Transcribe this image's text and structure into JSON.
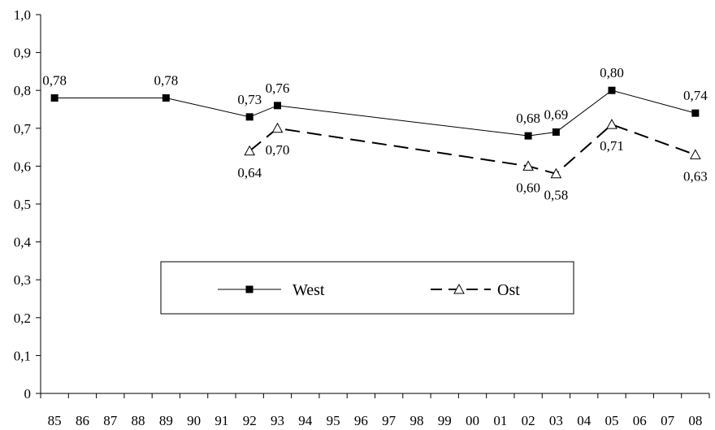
{
  "chart_data": {
    "type": "line",
    "categories": [
      "85",
      "86",
      "87",
      "88",
      "89",
      "90",
      "91",
      "92",
      "93",
      "94",
      "95",
      "96",
      "97",
      "98",
      "99",
      "00",
      "01",
      "02",
      "03",
      "04",
      "05",
      "06",
      "07",
      "08"
    ],
    "ylim": [
      0,
      1.0
    ],
    "yticks": [
      "0",
      "0,1",
      "0,2",
      "0,3",
      "0,4",
      "0,5",
      "0,6",
      "0,7",
      "0,8",
      "0,9",
      "1,0"
    ],
    "grid": false,
    "legend_position": "center",
    "series": [
      {
        "name": "West",
        "style": "solid",
        "marker": "square",
        "color": "#000000",
        "points": [
          {
            "x": "85",
            "y": 0.78,
            "label": "0,78",
            "label_pos": "above"
          },
          {
            "x": "89",
            "y": 0.78,
            "label": "0,78",
            "label_pos": "above"
          },
          {
            "x": "92",
            "y": 0.73,
            "label": "0,73",
            "label_pos": "above"
          },
          {
            "x": "93",
            "y": 0.76,
            "label": "0,76",
            "label_pos": "above"
          },
          {
            "x": "02",
            "y": 0.68,
            "label": "0,68",
            "label_pos": "above"
          },
          {
            "x": "03",
            "y": 0.69,
            "label": "0,69",
            "label_pos": "above"
          },
          {
            "x": "05",
            "y": 0.8,
            "label": "0,80",
            "label_pos": "above"
          },
          {
            "x": "08",
            "y": 0.74,
            "label": "0,74",
            "label_pos": "above"
          }
        ]
      },
      {
        "name": "Ost",
        "style": "dashed",
        "marker": "triangle-open",
        "color": "#000000",
        "points": [
          {
            "x": "92",
            "y": 0.64,
            "label": "0,64",
            "label_pos": "below"
          },
          {
            "x": "93",
            "y": 0.7,
            "label": "0,70",
            "label_pos": "below"
          },
          {
            "x": "02",
            "y": 0.6,
            "label": "0,60",
            "label_pos": "below"
          },
          {
            "x": "03",
            "y": 0.58,
            "label": "0,58",
            "label_pos": "below"
          },
          {
            "x": "05",
            "y": 0.71,
            "label": "0,71",
            "label_pos": "below"
          },
          {
            "x": "08",
            "y": 0.63,
            "label": "0,63",
            "label_pos": "below"
          }
        ]
      }
    ]
  }
}
